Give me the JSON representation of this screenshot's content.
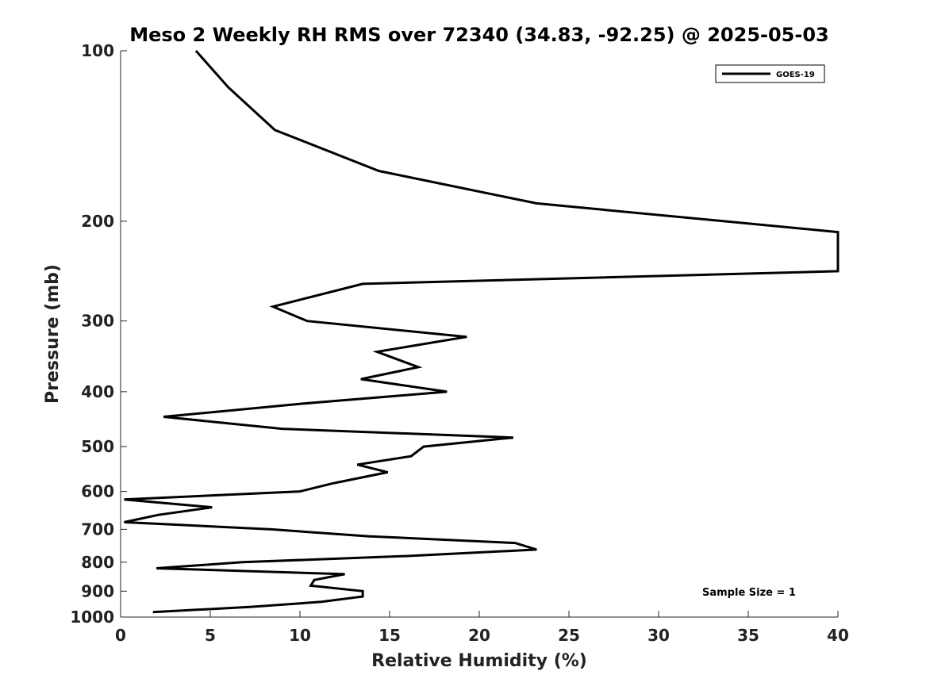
{
  "chart_data": {
    "type": "line",
    "title": "Meso 2 Weekly RH RMS over 72340 (34.83, -92.25) @ 2025-05-03",
    "xlabel": "Relative Humidity (%)",
    "ylabel": "Pressure (mb)",
    "xlim": [
      0,
      40
    ],
    "ylim": [
      1000,
      100
    ],
    "yscale": "log",
    "xticks": [
      0,
      5,
      10,
      15,
      20,
      25,
      30,
      35,
      40
    ],
    "yticks": [
      100,
      200,
      300,
      400,
      500,
      600,
      700,
      800,
      900,
      1000
    ],
    "grid": false,
    "legend_position": "top-right",
    "series": [
      {
        "name": "GOES-19",
        "color": "#000000",
        "points": [
          [
            4.2,
            100
          ],
          [
            6.0,
            116
          ],
          [
            8.6,
            138
          ],
          [
            14.4,
            163
          ],
          [
            23.2,
            186
          ],
          [
            40.0,
            209
          ],
          [
            40.0,
            245
          ],
          [
            13.5,
            258
          ],
          [
            8.5,
            283
          ],
          [
            10.4,
            300
          ],
          [
            19.3,
            320
          ],
          [
            14.3,
            340
          ],
          [
            16.6,
            362
          ],
          [
            13.4,
            380
          ],
          [
            18.2,
            400
          ],
          [
            10.1,
            420
          ],
          [
            2.4,
            443
          ],
          [
            9.0,
            465
          ],
          [
            21.9,
            482
          ],
          [
            16.9,
            500
          ],
          [
            16.2,
            520
          ],
          [
            13.2,
            538
          ],
          [
            14.9,
            555
          ],
          [
            11.9,
            580
          ],
          [
            10.0,
            600
          ],
          [
            0.2,
            620
          ],
          [
            5.1,
            640
          ],
          [
            2.1,
            660
          ],
          [
            0.2,
            680
          ],
          [
            8.4,
            700
          ],
          [
            13.8,
            720
          ],
          [
            22.0,
            740
          ],
          [
            23.2,
            760
          ],
          [
            16.0,
            780
          ],
          [
            6.8,
            800
          ],
          [
            2.0,
            820
          ],
          [
            12.5,
            840
          ],
          [
            10.8,
            860
          ],
          [
            10.6,
            880
          ],
          [
            13.5,
            900
          ],
          [
            13.5,
            920
          ],
          [
            11.2,
            940
          ],
          [
            7.2,
            960
          ],
          [
            1.8,
            980
          ]
        ]
      }
    ],
    "annotations": [
      "Sample Size = 1"
    ]
  }
}
